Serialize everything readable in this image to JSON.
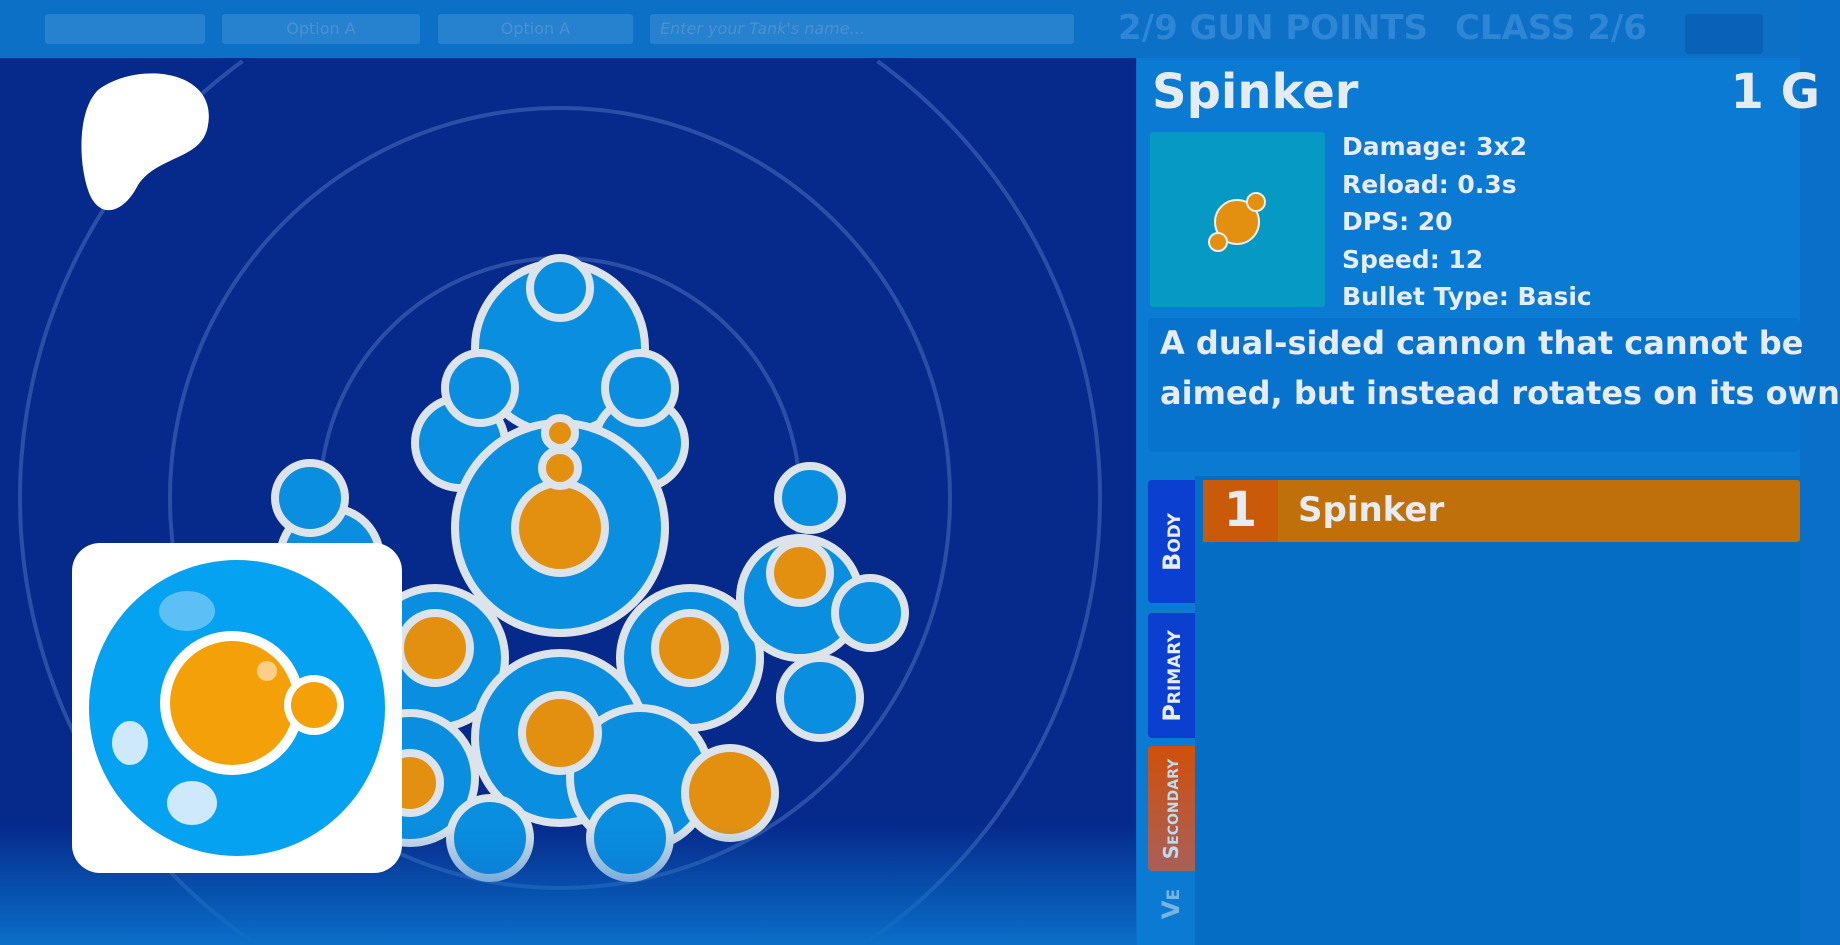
{
  "topbar": {
    "option_1": "Option A",
    "option_2": "Option A",
    "name_placeholder": "Enter your Tank's name...",
    "gun_points": "2/9 GUN POINTS",
    "class": "CLASS 2/6"
  },
  "weapon": {
    "title": "Spinker",
    "gun_points": "1 G",
    "stats": [
      "Damage: 3x2",
      "Reload: 0.3s",
      "DPS: 20",
      "Speed: 12",
      "Bullet Type: Basic"
    ],
    "description_lines": [
      "A dual-sided cannon that cannot be",
      "aimed, but instead rotates on its own"
    ]
  },
  "tabs": [
    {
      "label": "Body",
      "color": "#0a3fd0"
    },
    {
      "label": "Primary",
      "color": "#0a3fd0"
    },
    {
      "label": "Secondary",
      "color": "#d0500a"
    },
    {
      "label": "Ve",
      "color": "#0a6fc8"
    }
  ],
  "list": [
    {
      "number": "1",
      "name": "Spinker"
    }
  ],
  "colors": {
    "canvas": "#062a8c",
    "panel": "#0a7ad2",
    "accent_orange": "#c0700a",
    "tank_blue": "#0a8ee0",
    "bullet_orange": "#e39010"
  }
}
